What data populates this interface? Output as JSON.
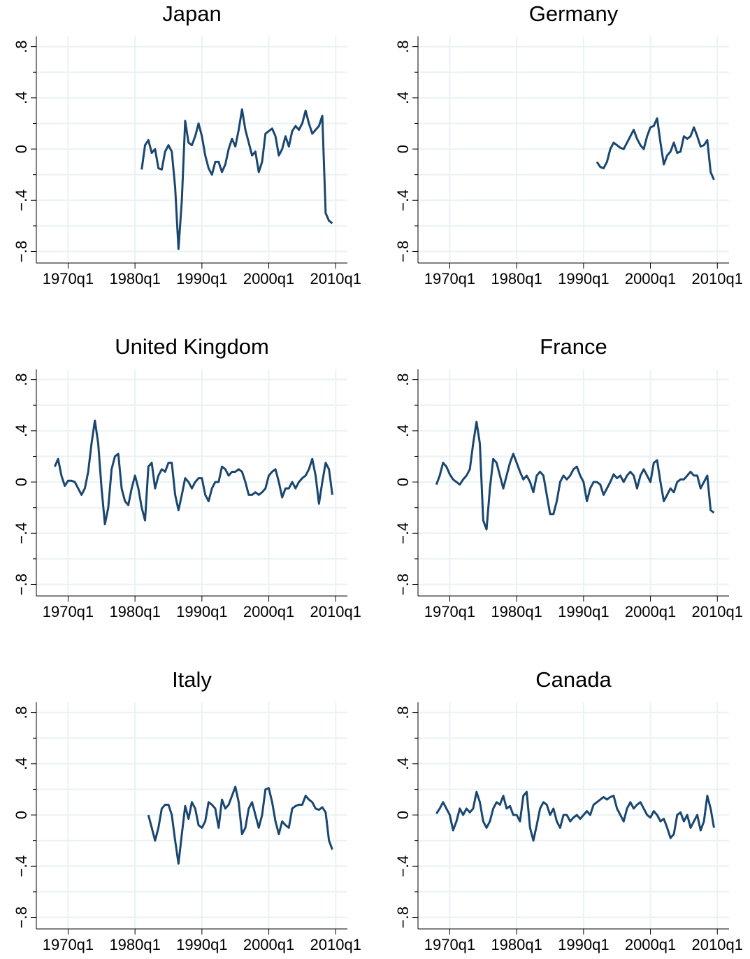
{
  "chart_data": [
    {
      "type": "line",
      "title": "Japan",
      "color": "#1a476f",
      "grid": true,
      "xlim": [
        "1965q2",
        "2011q4"
      ],
      "xticks": [
        "1970q1",
        "1980q1",
        "1990q1",
        "2000q1",
        "2010q1"
      ],
      "ylim": [
        -0.89,
        0.88
      ],
      "yticks": [
        {
          "value": -0.8,
          "label": "−.8"
        },
        {
          "value": -0.4,
          "label": "−.4"
        },
        0,
        {
          "value": 0.4,
          "label": ".4"
        },
        {
          "value": 0.8,
          "label": ".8"
        }
      ],
      "yminorticks": [
        -0.6,
        -0.2,
        0.2,
        0.6
      ],
      "x": [
        "1981q1",
        "1981q3",
        "1982q1",
        "1982q3",
        "1983q1",
        "1983q3",
        "1984q1",
        "1984q3",
        "1985q1",
        "1985q3",
        "1986q1",
        "1986q3",
        "1987q1",
        "1987q3",
        "1988q1",
        "1988q3",
        "1989q1",
        "1989q3",
        "1990q1",
        "1990q3",
        "1991q1",
        "1991q3",
        "1992q1",
        "1992q3",
        "1993q1",
        "1993q3",
        "1994q1",
        "1994q3",
        "1995q1",
        "1995q3",
        "1996q1",
        "1996q3",
        "1997q1",
        "1997q3",
        "1998q1",
        "1998q3",
        "1999q1",
        "1999q3",
        "2000q1",
        "2000q3",
        "2001q1",
        "2001q3",
        "2002q1",
        "2002q3",
        "2003q1",
        "2003q3",
        "2004q1",
        "2004q3",
        "2005q1",
        "2005q3",
        "2006q1",
        "2006q3",
        "2007q1",
        "2007q3",
        "2008q1",
        "2008q3",
        "2009q1",
        "2009q3"
      ],
      "values": [
        -0.16,
        0.03,
        0.07,
        -0.03,
        0.0,
        -0.15,
        -0.16,
        -0.02,
        0.03,
        -0.02,
        -0.3,
        -0.78,
        -0.4,
        0.22,
        0.05,
        0.03,
        0.1,
        0.2,
        0.1,
        -0.05,
        -0.15,
        -0.2,
        -0.1,
        -0.1,
        -0.18,
        -0.12,
        0.0,
        0.08,
        0.02,
        0.15,
        0.31,
        0.15,
        0.05,
        -0.05,
        -0.02,
        -0.18,
        -0.1,
        0.12,
        0.14,
        0.16,
        0.1,
        -0.05,
        0.0,
        0.1,
        0.02,
        0.14,
        0.18,
        0.15,
        0.2,
        0.3,
        0.2,
        0.12,
        0.15,
        0.18,
        0.26,
        -0.5,
        -0.56,
        -0.58
      ]
    },
    {
      "type": "line",
      "title": "Germany",
      "color": "#1a476f",
      "grid": true,
      "xlim": [
        "1965q2",
        "2011q4"
      ],
      "xticks": [
        "1970q1",
        "1980q1",
        "1990q1",
        "2000q1",
        "2010q1"
      ],
      "ylim": [
        -0.89,
        0.88
      ],
      "yticks": [
        {
          "value": -0.8,
          "label": "−.8"
        },
        {
          "value": -0.4,
          "label": "−.4"
        },
        0,
        {
          "value": 0.4,
          "label": ".4"
        },
        {
          "value": 0.8,
          "label": ".8"
        }
      ],
      "yminorticks": [
        -0.6,
        -0.2,
        0.2,
        0.6
      ],
      "x": [
        "1992q1",
        "1992q3",
        "1993q1",
        "1993q3",
        "1994q1",
        "1994q3",
        "1995q1",
        "1995q3",
        "1996q1",
        "1996q3",
        "1997q1",
        "1997q3",
        "1998q1",
        "1998q3",
        "1999q1",
        "1999q3",
        "2000q1",
        "2000q3",
        "2001q1",
        "2001q3",
        "2002q1",
        "2002q3",
        "2003q1",
        "2003q3",
        "2004q1",
        "2004q3",
        "2005q1",
        "2005q3",
        "2006q1",
        "2006q3",
        "2007q1",
        "2007q3",
        "2008q1",
        "2008q3",
        "2009q1",
        "2009q3"
      ],
      "values": [
        -0.1,
        -0.14,
        -0.15,
        -0.1,
        0.0,
        0.05,
        0.03,
        0.01,
        0.0,
        0.05,
        0.1,
        0.15,
        0.08,
        0.03,
        0.0,
        0.1,
        0.17,
        0.18,
        0.24,
        0.05,
        -0.12,
        -0.05,
        -0.02,
        0.05,
        -0.03,
        -0.02,
        0.1,
        0.08,
        0.1,
        0.17,
        0.1,
        0.02,
        0.03,
        0.07,
        -0.18,
        -0.24
      ]
    },
    {
      "type": "line",
      "title": "United Kingdom",
      "color": "#1a476f",
      "grid": true,
      "xlim": [
        "1965q2",
        "2011q4"
      ],
      "xticks": [
        "1970q1",
        "1980q1",
        "1990q1",
        "2000q1",
        "2010q1"
      ],
      "ylim": [
        -0.89,
        0.88
      ],
      "yticks": [
        {
          "value": -0.8,
          "label": "−.8"
        },
        {
          "value": -0.4,
          "label": "−.4"
        },
        0,
        {
          "value": 0.4,
          "label": ".4"
        },
        {
          "value": 0.8,
          "label": ".8"
        }
      ],
      "yminorticks": [
        -0.6,
        -0.2,
        0.2,
        0.6
      ],
      "x": [
        "1968q1",
        "1968q3",
        "1969q1",
        "1969q3",
        "1970q1",
        "1970q3",
        "1971q1",
        "1971q3",
        "1972q1",
        "1972q3",
        "1973q1",
        "1973q3",
        "1974q1",
        "1974q3",
        "1975q1",
        "1975q3",
        "1976q1",
        "1976q3",
        "1977q1",
        "1977q3",
        "1978q1",
        "1978q3",
        "1979q1",
        "1979q3",
        "1980q1",
        "1980q3",
        "1981q1",
        "1981q3",
        "1982q1",
        "1982q3",
        "1983q1",
        "1983q3",
        "1984q1",
        "1984q3",
        "1985q1",
        "1985q3",
        "1986q1",
        "1986q3",
        "1987q1",
        "1987q3",
        "1988q1",
        "1988q3",
        "1989q1",
        "1989q3",
        "1990q1",
        "1990q3",
        "1991q1",
        "1991q3",
        "1992q1",
        "1992q3",
        "1993q1",
        "1993q3",
        "1994q1",
        "1994q3",
        "1995q1",
        "1995q3",
        "1996q1",
        "1996q3",
        "1997q1",
        "1997q3",
        "1998q1",
        "1998q3",
        "1999q1",
        "1999q3",
        "2000q1",
        "2000q3",
        "2001q1",
        "2001q3",
        "2002q1",
        "2002q3",
        "2003q1",
        "2003q3",
        "2004q1",
        "2004q3",
        "2005q1",
        "2005q3",
        "2006q1",
        "2006q3",
        "2007q1",
        "2007q3",
        "2008q1",
        "2008q3",
        "2009q1",
        "2009q3"
      ],
      "values": [
        0.12,
        0.18,
        0.05,
        -0.03,
        0.01,
        0.01,
        0.0,
        -0.05,
        -0.1,
        -0.05,
        0.08,
        0.3,
        0.48,
        0.3,
        -0.05,
        -0.33,
        -0.2,
        0.1,
        0.2,
        0.22,
        -0.05,
        -0.15,
        -0.18,
        -0.05,
        0.05,
        -0.05,
        -0.2,
        -0.3,
        0.12,
        0.15,
        -0.05,
        0.05,
        0.1,
        0.08,
        0.15,
        0.15,
        -0.1,
        -0.22,
        -0.1,
        0.03,
        0.0,
        -0.05,
        0.0,
        0.03,
        0.03,
        -0.1,
        -0.15,
        -0.05,
        0.0,
        0.0,
        0.12,
        0.1,
        0.05,
        0.08,
        0.08,
        0.1,
        0.08,
        0.0,
        -0.1,
        -0.1,
        -0.08,
        -0.1,
        -0.08,
        -0.05,
        0.05,
        0.08,
        0.1,
        0.0,
        -0.12,
        -0.05,
        -0.05,
        0.0,
        -0.05,
        0.0,
        0.03,
        0.05,
        0.1,
        0.18,
        0.05,
        -0.17,
        0.0,
        0.15,
        0.1,
        -0.1
      ]
    },
    {
      "type": "line",
      "title": "France",
      "color": "#1a476f",
      "grid": true,
      "xlim": [
        "1965q2",
        "2011q4"
      ],
      "xticks": [
        "1970q1",
        "1980q1",
        "1990q1",
        "2000q1",
        "2010q1"
      ],
      "ylim": [
        -0.89,
        0.88
      ],
      "yticks": [
        {
          "value": -0.8,
          "label": "−.8"
        },
        {
          "value": -0.4,
          "label": "−.4"
        },
        0,
        {
          "value": 0.4,
          "label": ".4"
        },
        {
          "value": 0.8,
          "label": ".8"
        }
      ],
      "yminorticks": [
        -0.6,
        -0.2,
        0.2,
        0.6
      ],
      "x": [
        "1968q1",
        "1968q3",
        "1969q1",
        "1969q3",
        "1970q1",
        "1970q3",
        "1971q1",
        "1971q3",
        "1972q1",
        "1972q3",
        "1973q1",
        "1973q3",
        "1974q1",
        "1974q3",
        "1975q1",
        "1975q3",
        "1976q1",
        "1976q3",
        "1977q1",
        "1977q3",
        "1978q1",
        "1978q3",
        "1979q1",
        "1979q3",
        "1980q1",
        "1980q3",
        "1981q1",
        "1981q3",
        "1982q1",
        "1982q3",
        "1983q1",
        "1983q3",
        "1984q1",
        "1984q3",
        "1985q1",
        "1985q3",
        "1986q1",
        "1986q3",
        "1987q1",
        "1987q3",
        "1988q1",
        "1988q3",
        "1989q1",
        "1989q3",
        "1990q1",
        "1990q3",
        "1991q1",
        "1991q3",
        "1992q1",
        "1992q3",
        "1993q1",
        "1993q3",
        "1994q1",
        "1994q3",
        "1995q1",
        "1995q3",
        "1996q1",
        "1996q3",
        "1997q1",
        "1997q3",
        "1998q1",
        "1998q3",
        "1999q1",
        "1999q3",
        "2000q1",
        "2000q3",
        "2001q1",
        "2001q3",
        "2002q1",
        "2002q3",
        "2003q1",
        "2003q3",
        "2004q1",
        "2004q3",
        "2005q1",
        "2005q3",
        "2006q1",
        "2006q3",
        "2007q1",
        "2007q3",
        "2008q1",
        "2008q3",
        "2009q1",
        "2009q3"
      ],
      "values": [
        -0.02,
        0.05,
        0.15,
        0.12,
        0.06,
        0.02,
        0.0,
        -0.02,
        0.02,
        0.05,
        0.1,
        0.3,
        0.47,
        0.3,
        -0.3,
        -0.37,
        -0.05,
        0.18,
        0.15,
        0.05,
        -0.05,
        0.05,
        0.15,
        0.22,
        0.15,
        0.08,
        0.02,
        0.05,
        0.0,
        -0.08,
        0.05,
        0.08,
        0.05,
        -0.1,
        -0.25,
        -0.25,
        -0.15,
        0.0,
        0.05,
        0.02,
        0.05,
        0.1,
        0.12,
        0.05,
        0.0,
        -0.15,
        -0.05,
        0.0,
        0.0,
        -0.02,
        -0.1,
        -0.05,
        0.0,
        0.06,
        0.03,
        0.05,
        0.0,
        0.05,
        0.08,
        0.05,
        -0.05,
        0.05,
        0.1,
        0.05,
        0.0,
        0.15,
        0.17,
        0.0,
        -0.15,
        -0.1,
        -0.05,
        -0.08,
        0.0,
        0.02,
        0.02,
        0.05,
        0.08,
        0.05,
        0.05,
        -0.05,
        0.0,
        0.05,
        -0.22,
        -0.24
      ]
    },
    {
      "type": "line",
      "title": "Italy",
      "color": "#1a476f",
      "grid": true,
      "xlim": [
        "1965q2",
        "2011q4"
      ],
      "xticks": [
        "1970q1",
        "1980q1",
        "1990q1",
        "2000q1",
        "2010q1"
      ],
      "ylim": [
        -0.89,
        0.88
      ],
      "yticks": [
        {
          "value": -0.8,
          "label": "−.8"
        },
        {
          "value": -0.4,
          "label": "−.4"
        },
        0,
        {
          "value": 0.4,
          "label": ".4"
        },
        {
          "value": 0.8,
          "label": ".8"
        }
      ],
      "yminorticks": [
        -0.6,
        -0.2,
        0.2,
        0.6
      ],
      "x": [
        "1982q1",
        "1982q3",
        "1983q1",
        "1983q3",
        "1984q1",
        "1984q3",
        "1985q1",
        "1985q3",
        "1986q1",
        "1986q3",
        "1987q1",
        "1987q3",
        "1988q1",
        "1988q3",
        "1989q1",
        "1989q3",
        "1990q1",
        "1990q3",
        "1991q1",
        "1991q3",
        "1992q1",
        "1992q3",
        "1993q1",
        "1993q3",
        "1994q1",
        "1994q3",
        "1995q1",
        "1995q3",
        "1996q1",
        "1996q3",
        "1997q1",
        "1997q3",
        "1998q1",
        "1998q3",
        "1999q1",
        "1999q3",
        "2000q1",
        "2000q3",
        "2001q1",
        "2001q3",
        "2002q1",
        "2002q3",
        "2003q1",
        "2003q3",
        "2004q1",
        "2004q3",
        "2005q1",
        "2005q3",
        "2006q1",
        "2006q3",
        "2007q1",
        "2007q3",
        "2008q1",
        "2008q3",
        "2009q1",
        "2009q3"
      ],
      "values": [
        0.0,
        -0.1,
        -0.2,
        -0.1,
        0.05,
        0.08,
        0.08,
        0.0,
        -0.2,
        -0.38,
        -0.15,
        0.07,
        -0.03,
        0.1,
        0.05,
        -0.08,
        -0.1,
        -0.05,
        0.1,
        0.08,
        0.05,
        -0.1,
        0.12,
        0.05,
        0.08,
        0.15,
        0.22,
        0.1,
        -0.15,
        -0.1,
        0.05,
        0.1,
        0.0,
        -0.1,
        0.0,
        0.2,
        0.21,
        0.1,
        -0.05,
        -0.15,
        -0.05,
        -0.08,
        -0.1,
        0.05,
        0.07,
        0.08,
        0.08,
        0.15,
        0.12,
        0.1,
        0.05,
        0.04,
        0.06,
        0.02,
        -0.2,
        -0.27
      ]
    },
    {
      "type": "line",
      "title": "Canada",
      "color": "#1a476f",
      "grid": true,
      "xlim": [
        "1965q2",
        "2011q4"
      ],
      "xticks": [
        "1970q1",
        "1980q1",
        "1990q1",
        "2000q1",
        "2010q1"
      ],
      "ylim": [
        -0.89,
        0.88
      ],
      "yticks": [
        {
          "value": -0.8,
          "label": "−.8"
        },
        {
          "value": -0.4,
          "label": "−.4"
        },
        0,
        {
          "value": 0.4,
          "label": ".4"
        },
        {
          "value": 0.8,
          "label": ".8"
        }
      ],
      "yminorticks": [
        -0.6,
        -0.2,
        0.2,
        0.6
      ],
      "x": [
        "1968q1",
        "1968q3",
        "1969q1",
        "1969q3",
        "1970q1",
        "1970q3",
        "1971q1",
        "1971q3",
        "1972q1",
        "1972q3",
        "1973q1",
        "1973q3",
        "1974q1",
        "1974q3",
        "1975q1",
        "1975q3",
        "1976q1",
        "1976q3",
        "1977q1",
        "1977q3",
        "1978q1",
        "1978q3",
        "1979q1",
        "1979q3",
        "1980q1",
        "1980q3",
        "1981q1",
        "1981q3",
        "1982q1",
        "1982q3",
        "1983q1",
        "1983q3",
        "1984q1",
        "1984q3",
        "1985q1",
        "1985q3",
        "1986q1",
        "1986q3",
        "1987q1",
        "1987q3",
        "1988q1",
        "1988q3",
        "1989q1",
        "1989q3",
        "1990q1",
        "1990q3",
        "1991q1",
        "1991q3",
        "1992q1",
        "1992q3",
        "1993q1",
        "1993q3",
        "1994q1",
        "1994q3",
        "1995q1",
        "1995q3",
        "1996q1",
        "1996q3",
        "1997q1",
        "1997q3",
        "1998q1",
        "1998q3",
        "1999q1",
        "1999q3",
        "2000q1",
        "2000q3",
        "2001q1",
        "2001q3",
        "2002q1",
        "2002q3",
        "2003q1",
        "2003q3",
        "2004q1",
        "2004q3",
        "2005q1",
        "2005q3",
        "2006q1",
        "2006q3",
        "2007q1",
        "2007q3",
        "2008q1",
        "2008q3",
        "2009q1",
        "2009q3"
      ],
      "values": [
        0.01,
        0.05,
        0.1,
        0.05,
        0.0,
        -0.12,
        -0.05,
        0.05,
        0.0,
        0.05,
        0.02,
        0.05,
        0.18,
        0.1,
        -0.05,
        -0.1,
        -0.05,
        0.05,
        0.1,
        0.08,
        0.15,
        0.05,
        0.07,
        0.0,
        0.0,
        -0.05,
        0.15,
        0.18,
        -0.1,
        -0.2,
        -0.08,
        0.05,
        0.1,
        0.08,
        0.0,
        0.05,
        -0.05,
        -0.1,
        0.0,
        0.0,
        -0.05,
        -0.02,
        0.0,
        -0.03,
        0.0,
        0.03,
        0.0,
        0.08,
        0.1,
        0.12,
        0.14,
        0.12,
        0.14,
        0.15,
        0.05,
        0.0,
        -0.05,
        0.05,
        0.1,
        0.05,
        0.08,
        0.1,
        0.05,
        0.0,
        -0.02,
        0.03,
        0.0,
        -0.05,
        -0.03,
        -0.1,
        -0.18,
        -0.15,
        0.0,
        0.02,
        -0.05,
        0.0,
        -0.1,
        -0.05,
        0.0,
        -0.12,
        -0.05,
        0.15,
        0.05,
        -0.1
      ]
    }
  ]
}
